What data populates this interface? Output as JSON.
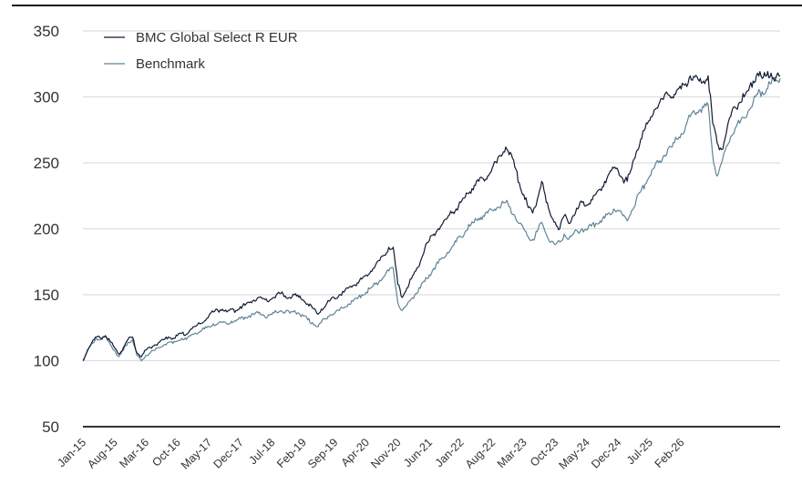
{
  "chart_data": {
    "type": "line",
    "title": "",
    "xlabel": "",
    "ylabel": "",
    "ylim": [
      50,
      350
    ],
    "yticks": [
      50,
      100,
      150,
      200,
      250,
      300,
      350
    ],
    "grid": true,
    "legend_position": "top-left",
    "x_tick_labels": [
      "Jan-15",
      "Aug-15",
      "Mar-16",
      "Oct-16",
      "May-17",
      "Dec-17",
      "Jul-18",
      "Feb-19",
      "Sep-19",
      "Apr-20",
      "Nov-20",
      "Jun-21",
      "Jan-22",
      "Aug-22",
      "Mar-23",
      "Oct-23",
      "May-24",
      "Dec-24",
      "Jul-25",
      "Feb-26"
    ],
    "x_start": "Jan-15",
    "x_end": "Feb-26",
    "x_step_months": 1,
    "series": [
      {
        "name": "BMC Global Select R EUR",
        "color": "#0f1a33",
        "values": [
          100,
          108,
          114,
          118,
          117,
          119,
          115,
          110,
          105,
          110,
          116,
          118,
          106,
          103,
          108,
          110,
          112,
          114,
          116,
          118,
          117,
          119,
          121,
          120,
          124,
          126,
          128,
          130,
          134,
          137,
          138,
          139,
          137,
          139,
          138,
          141,
          142,
          144,
          146,
          148,
          147,
          145,
          147,
          150,
          151,
          149,
          148,
          150,
          148,
          146,
          143,
          140,
          136,
          139,
          142,
          146,
          147,
          150,
          152,
          155,
          157,
          159,
          162,
          165,
          168,
          172,
          176,
          180,
          186,
          186,
          158,
          148,
          155,
          162,
          168,
          175,
          185,
          191,
          196,
          200,
          204,
          208,
          212,
          215,
          220,
          224,
          228,
          233,
          236,
          238,
          240,
          246,
          250,
          255,
          262,
          258,
          247,
          235,
          226,
          216,
          212,
          222,
          236,
          220,
          210,
          205,
          200,
          210,
          204,
          210,
          215,
          220,
          218,
          222,
          226,
          230,
          236,
          242,
          246,
          244,
          238,
          236,
          246,
          258,
          268,
          276,
          282,
          290,
          294,
          298,
          302,
          300,
          305,
          306,
          310,
          316,
          315,
          312,
          312,
          316,
          280,
          265,
          260,
          272,
          285,
          292,
          296,
          300,
          305,
          312,
          318,
          314,
          316,
          318,
          314,
          316
        ]
      },
      {
        "name": "Benchmark",
        "color": "#5f8497",
        "values": [
          100,
          107,
          113,
          117,
          116,
          118,
          113,
          108,
          103,
          108,
          114,
          116,
          104,
          100,
          104,
          106,
          108,
          110,
          112,
          114,
          113,
          115,
          117,
          116,
          119,
          121,
          122,
          124,
          126,
          128,
          128,
          129,
          128,
          130,
          130,
          132,
          133,
          134,
          135,
          136,
          135,
          133,
          135,
          137,
          138,
          137,
          136,
          138,
          136,
          134,
          131,
          129,
          126,
          129,
          132,
          135,
          136,
          138,
          140,
          143,
          145,
          147,
          150,
          152,
          155,
          158,
          161,
          164,
          168,
          170,
          144,
          138,
          142,
          147,
          151,
          155,
          160,
          165,
          170,
          174,
          178,
          182,
          186,
          190,
          194,
          198,
          202,
          205,
          208,
          210,
          212,
          214,
          216,
          218,
          220,
          216,
          210,
          204,
          200,
          194,
          192,
          198,
          205,
          196,
          190,
          188,
          190,
          196,
          192,
          196,
          198,
          200,
          199,
          202,
          204,
          206,
          208,
          212,
          215,
          214,
          210,
          206,
          214,
          222,
          228,
          234,
          240,
          246,
          250,
          255,
          260,
          262,
          268,
          272,
          278,
          285,
          288,
          290,
          292,
          294,
          256,
          240,
          250,
          262,
          270,
          276,
          280,
          284,
          290,
          296,
          302,
          304,
          306,
          310,
          312,
          314
        ]
      }
    ]
  }
}
